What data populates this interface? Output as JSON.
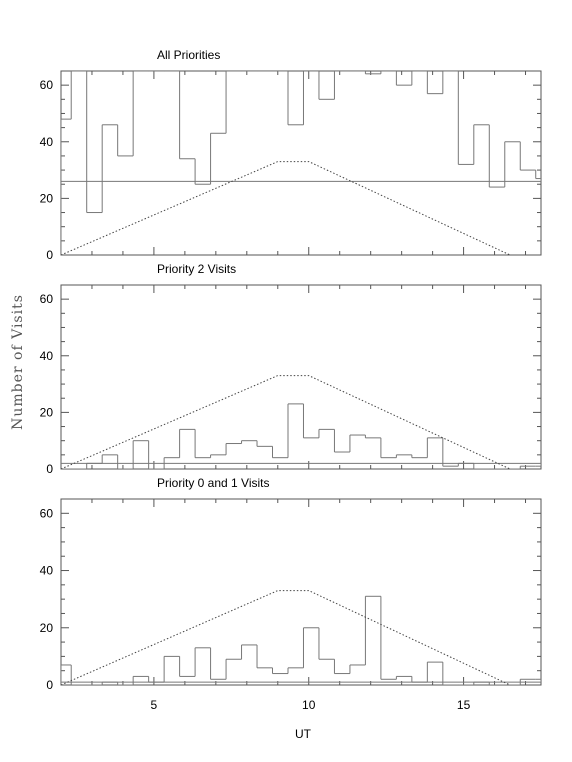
{
  "figure": {
    "ylabel": "Number of Visits",
    "xlabel": "UT"
  },
  "chart_data": [
    {
      "type": "bar",
      "title": "All Priorities",
      "bin_edges": [
        2,
        2.33,
        2.83,
        3.33,
        3.83,
        4.33,
        4.83,
        5.33,
        5.83,
        6.33,
        6.83,
        7.33,
        7.83,
        8.33,
        8.83,
        9.33,
        9.83,
        10.33,
        10.83,
        11.33,
        11.83,
        12.33,
        12.83,
        13.33,
        13.83,
        14.33,
        14.83,
        15.33,
        15.83,
        16.33,
        16.83,
        17.33,
        17.5
      ],
      "values": [
        48,
        65,
        15,
        46,
        35,
        65,
        65,
        65,
        34,
        25,
        43,
        65,
        65,
        65,
        65,
        46,
        65,
        55,
        65,
        65,
        64,
        65,
        60,
        65,
        57,
        65,
        32,
        46,
        24,
        40,
        30,
        27,
        26
      ],
      "limit_x": [
        2,
        9,
        10,
        16.5
      ],
      "limit_y": [
        0,
        33,
        33,
        0
      ],
      "xlim": [
        2,
        17.5
      ],
      "ylim": [
        0,
        65
      ],
      "xticks": [
        5,
        10,
        15
      ],
      "yticks": [
        0,
        20,
        40,
        60
      ],
      "show_xtick_labels": false
    },
    {
      "type": "bar",
      "title": "Priority 2 Visits",
      "bin_edges": [
        2,
        2.33,
        2.83,
        3.33,
        3.83,
        4.33,
        4.83,
        5.33,
        5.83,
        6.33,
        6.83,
        7.33,
        7.83,
        8.33,
        8.83,
        9.33,
        9.83,
        10.33,
        10.83,
        11.33,
        11.83,
        12.33,
        12.83,
        13.33,
        13.83,
        14.33,
        14.83,
        15.33,
        15.83,
        16.33,
        16.83,
        17.33,
        17.5
      ],
      "values": [
        0,
        0,
        2,
        5,
        0,
        10,
        0,
        4,
        14,
        4,
        5,
        9,
        10,
        8,
        4,
        23,
        11,
        14,
        6,
        12,
        11,
        4,
        5,
        4,
        11,
        1,
        2,
        0,
        0,
        0,
        1,
        1,
        2
      ],
      "limit_x": [
        2,
        9,
        10,
        16.5
      ],
      "limit_y": [
        0,
        33,
        33,
        0
      ],
      "xlim": [
        2,
        17.5
      ],
      "ylim": [
        0,
        65
      ],
      "xticks": [
        5,
        10,
        15
      ],
      "yticks": [
        0,
        20,
        40,
        60
      ],
      "show_xtick_labels": false
    },
    {
      "type": "bar",
      "title": "Priority 0 and 1 Visits",
      "bin_edges": [
        2,
        2.33,
        2.83,
        3.33,
        3.83,
        4.33,
        4.83,
        5.33,
        5.83,
        6.33,
        6.83,
        7.33,
        7.83,
        8.33,
        8.83,
        9.33,
        9.83,
        10.33,
        10.83,
        11.33,
        11.83,
        12.33,
        12.83,
        13.33,
        13.83,
        14.33,
        14.83,
        15.33,
        15.83,
        16.33,
        16.83,
        17.33,
        17.5
      ],
      "values": [
        7,
        0,
        0,
        1,
        0,
        3,
        1,
        10,
        3,
        13,
        2,
        9,
        14,
        6,
        4,
        6,
        20,
        9,
        4,
        7,
        31,
        2,
        3,
        1,
        8,
        0,
        0,
        1,
        0,
        0,
        2,
        2,
        1
      ],
      "limit_x": [
        2,
        9,
        10,
        16.5
      ],
      "limit_y": [
        0,
        33,
        33,
        0
      ],
      "xlim": [
        2,
        17.5
      ],
      "ylim": [
        0,
        65
      ],
      "xticks": [
        5,
        10,
        15
      ],
      "yticks": [
        0,
        20,
        40,
        60
      ],
      "show_xtick_labels": true
    }
  ]
}
